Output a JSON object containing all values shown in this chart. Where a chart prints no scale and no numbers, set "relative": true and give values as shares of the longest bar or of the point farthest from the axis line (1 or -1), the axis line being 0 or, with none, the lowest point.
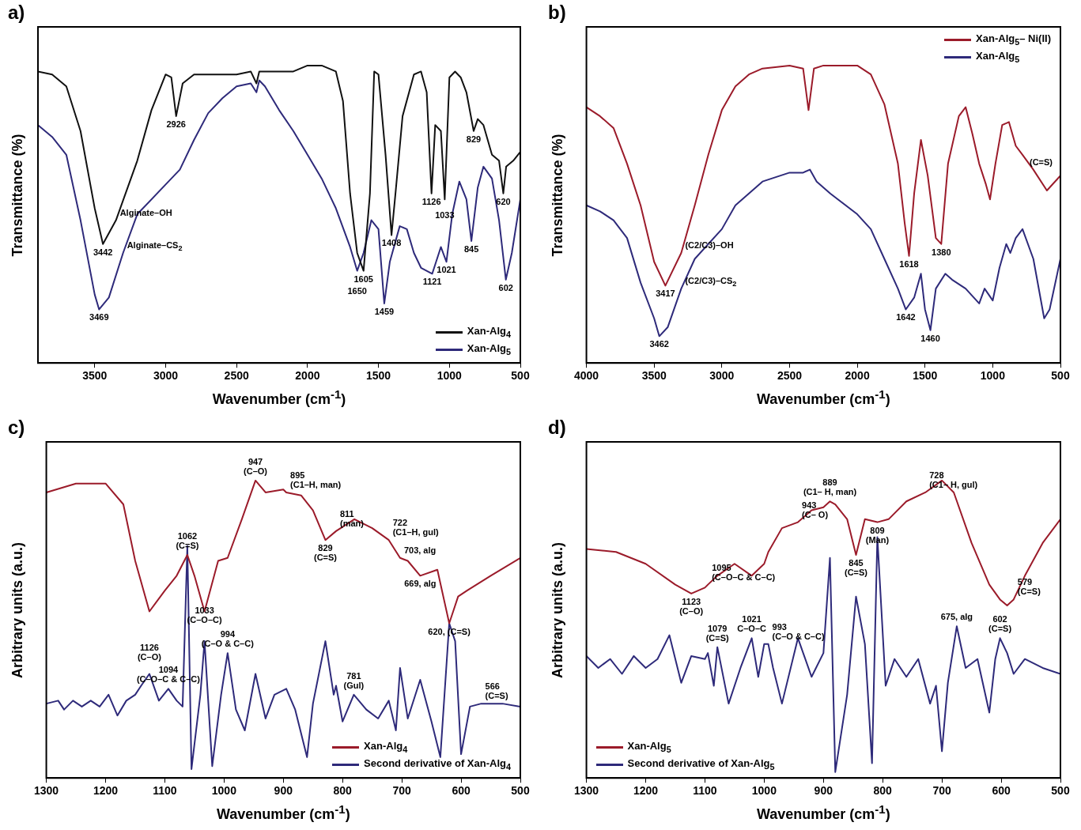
{
  "chart_data": [
    {
      "type": "line",
      "title": "a)",
      "xlabel": "Wavenumber (cm$^{-1}$)",
      "ylabel": "Transmittance (%)",
      "relative": true,
      "xlim": [
        3900,
        500
      ],
      "xticks": [
        3500,
        3000,
        2500,
        2000,
        1500,
        1000,
        500
      ],
      "legend": "bottom right",
      "series": [
        {
          "name": "Xan-Alg$_{4}$",
          "color": "#111111",
          "x": [
            3900,
            3800,
            3700,
            3600,
            3500,
            3442,
            3350,
            3200,
            3100,
            3000,
            2960,
            2926,
            2880,
            2800,
            2700,
            2500,
            2400,
            2360,
            2340,
            2300,
            2100,
            2000,
            1900,
            1800,
            1750,
            1700,
            1650,
            1605,
            1560,
            1530,
            1500,
            1450,
            1408,
            1380,
            1330,
            1250,
            1200,
            1160,
            1126,
            1100,
            1060,
            1033,
            1000,
            960,
            920,
            880,
            829,
            800,
            760,
            700,
            650,
            620,
            600,
            550,
            500
          ],
          "values": [
            0.98,
            0.97,
            0.93,
            0.78,
            0.52,
            0.4,
            0.48,
            0.68,
            0.85,
            0.97,
            0.96,
            0.83,
            0.94,
            0.97,
            0.97,
            0.97,
            0.98,
            0.94,
            0.98,
            0.98,
            0.98,
            1.0,
            1.0,
            0.98,
            0.88,
            0.57,
            0.37,
            0.31,
            0.57,
            0.98,
            0.97,
            0.7,
            0.43,
            0.57,
            0.83,
            0.97,
            0.98,
            0.91,
            0.57,
            0.8,
            0.78,
            0.55,
            0.96,
            0.98,
            0.96,
            0.91,
            0.78,
            0.82,
            0.8,
            0.7,
            0.68,
            0.57,
            0.66,
            0.68,
            0.71
          ]
        },
        {
          "name": "Xan-Alg$_{5}$",
          "color": "#2e2a7a",
          "x": [
            3900,
            3800,
            3700,
            3600,
            3500,
            3469,
            3400,
            3300,
            3200,
            3000,
            2900,
            2800,
            2700,
            2600,
            2500,
            2400,
            2360,
            2340,
            2300,
            2200,
            2100,
            2000,
            1900,
            1800,
            1700,
            1650,
            1605,
            1550,
            1500,
            1459,
            1420,
            1350,
            1300,
            1250,
            1200,
            1121,
            1060,
            1021,
            980,
            930,
            880,
            845,
            800,
            760,
            700,
            650,
            602,
            560,
            500
          ],
          "values": [
            0.8,
            0.76,
            0.7,
            0.48,
            0.23,
            0.18,
            0.22,
            0.37,
            0.5,
            0.6,
            0.65,
            0.75,
            0.84,
            0.89,
            0.93,
            0.94,
            0.91,
            0.95,
            0.93,
            0.85,
            0.78,
            0.7,
            0.62,
            0.52,
            0.39,
            0.31,
            0.37,
            0.48,
            0.45,
            0.2,
            0.34,
            0.46,
            0.45,
            0.37,
            0.32,
            0.3,
            0.39,
            0.34,
            0.5,
            0.61,
            0.55,
            0.41,
            0.59,
            0.66,
            0.62,
            0.48,
            0.28,
            0.37,
            0.55
          ]
        }
      ],
      "annotations": [
        {
          "text": "2926",
          "x": 2926,
          "y": 0.83
        },
        {
          "text": "Alginate–OH",
          "x": 3350,
          "y": 0.48
        },
        {
          "text": "3442",
          "x": 3442,
          "y": 0.4
        },
        {
          "text": "Alginate–CS$_{2}$",
          "x": 3300,
          "y": 0.37
        },
        {
          "text": "3469",
          "x": 3469,
          "y": 0.18
        },
        {
          "text": "1605",
          "x": 1605,
          "y": 0.31
        },
        {
          "text": "1650",
          "x": 1650,
          "y": 0.31
        },
        {
          "text": "1459",
          "x": 1459,
          "y": 0.2
        },
        {
          "text": "1408",
          "x": 1408,
          "y": 0.43
        },
        {
          "text": "1126",
          "x": 1126,
          "y": 0.57
        },
        {
          "text": "1033",
          "x": 1033,
          "y": 0.55
        },
        {
          "text": "1121",
          "x": 1121,
          "y": 0.3
        },
        {
          "text": "1021",
          "x": 1021,
          "y": 0.34
        },
        {
          "text": "845",
          "x": 845,
          "y": 0.41
        },
        {
          "text": "829",
          "x": 829,
          "y": 0.78
        },
        {
          "text": "620",
          "x": 620,
          "y": 0.57
        },
        {
          "text": "602",
          "x": 602,
          "y": 0.28
        }
      ]
    },
    {
      "type": "line",
      "title": "b)",
      "xlabel": "Wavenumber (cm$^{-1}$)",
      "ylabel": "Transmittance (%)",
      "relative": true,
      "xlim": [
        4000,
        500
      ],
      "xticks": [
        4000,
        3500,
        3000,
        2500,
        2000,
        1500,
        1000,
        500
      ],
      "legend": "top right",
      "series": [
        {
          "name": "Xan-Alg$_{5}$– Ni(II)",
          "color": "#9b1b2a",
          "x": [
            4000,
            3900,
            3800,
            3700,
            3600,
            3500,
            3417,
            3300,
            3200,
            3100,
            3000,
            2900,
            2800,
            2700,
            2500,
            2400,
            2360,
            2320,
            2250,
            2000,
            1900,
            1800,
            1700,
            1650,
            1618,
            1580,
            1530,
            1480,
            1420,
            1380,
            1330,
            1250,
            1200,
            1150,
            1100,
            1050,
            1020,
            980,
            930,
            880,
            830,
            780,
            700,
            600,
            500
          ],
          "values": [
            0.86,
            0.83,
            0.79,
            0.67,
            0.53,
            0.34,
            0.26,
            0.37,
            0.53,
            0.7,
            0.85,
            0.93,
            0.97,
            0.99,
            1.0,
            0.99,
            0.85,
            0.99,
            1.0,
            1.0,
            0.97,
            0.87,
            0.67,
            0.47,
            0.36,
            0.57,
            0.75,
            0.63,
            0.42,
            0.4,
            0.67,
            0.83,
            0.86,
            0.77,
            0.67,
            0.6,
            0.55,
            0.67,
            0.8,
            0.81,
            0.73,
            0.7,
            0.65,
            0.58,
            0.63
          ]
        },
        {
          "name": "Xan-Alg$_{5}$",
          "color": "#2e2a7a",
          "x": [
            4000,
            3900,
            3800,
            3700,
            3600,
            3500,
            3462,
            3400,
            3300,
            3200,
            3000,
            2900,
            2800,
            2700,
            2500,
            2400,
            2350,
            2300,
            2200,
            2000,
            1900,
            1800,
            1700,
            1642,
            1580,
            1530,
            1500,
            1460,
            1420,
            1350,
            1300,
            1200,
            1100,
            1060,
            1000,
            950,
            900,
            870,
            830,
            780,
            700,
            620,
            580,
            500
          ],
          "values": [
            0.53,
            0.51,
            0.48,
            0.42,
            0.27,
            0.15,
            0.09,
            0.12,
            0.25,
            0.35,
            0.45,
            0.53,
            0.57,
            0.61,
            0.64,
            0.64,
            0.65,
            0.61,
            0.57,
            0.5,
            0.45,
            0.35,
            0.25,
            0.18,
            0.22,
            0.3,
            0.18,
            0.11,
            0.25,
            0.3,
            0.28,
            0.25,
            0.2,
            0.25,
            0.21,
            0.32,
            0.4,
            0.37,
            0.42,
            0.45,
            0.35,
            0.15,
            0.18,
            0.35
          ]
        }
      ],
      "annotations": [
        {
          "text": "3417",
          "x": 3417,
          "y": 0.26
        },
        {
          "text": "3462",
          "x": 3462,
          "y": 0.09
        },
        {
          "text": "(C2/C3)–OH",
          "x": 3300,
          "y": 0.37
        },
        {
          "text": "(C2/C3)–CS$_{2}$",
          "x": 3300,
          "y": 0.25
        },
        {
          "text": "1618",
          "x": 1618,
          "y": 0.36
        },
        {
          "text": "1380",
          "x": 1380,
          "y": 0.4
        },
        {
          "text": "1642",
          "x": 1642,
          "y": 0.18
        },
        {
          "text": "1460",
          "x": 1460,
          "y": 0.11
        },
        {
          "text": "(C=S)",
          "x": 700,
          "y": 0.65
        }
      ]
    },
    {
      "type": "line",
      "title": "c)",
      "xlabel": "Wavenumber (cm$^{-1}$)",
      "ylabel": "Arbitrary units (a.u.)",
      "relative": true,
      "xlim": [
        1300,
        500
      ],
      "xticks": [
        1300,
        1200,
        1100,
        1000,
        900,
        800,
        700,
        600,
        500
      ],
      "legend": "bottom right",
      "series": [
        {
          "name": "Xan-Alg$_{4}$",
          "color": "#9b1b2a",
          "x": [
            1300,
            1250,
            1200,
            1170,
            1150,
            1126,
            1100,
            1080,
            1062,
            1050,
            1033,
            1010,
            994,
            970,
            947,
            930,
            900,
            895,
            870,
            850,
            829,
            811,
            780,
            750,
            722,
            703,
            690,
            669,
            640,
            620,
            605,
            590,
            550,
            500
          ],
          "values": [
            0.96,
            0.99,
            0.99,
            0.92,
            0.73,
            0.56,
            0.63,
            0.68,
            0.75,
            0.68,
            0.56,
            0.73,
            0.74,
            0.87,
            1.0,
            0.96,
            0.97,
            0.96,
            0.95,
            0.9,
            0.8,
            0.83,
            0.87,
            0.84,
            0.8,
            0.74,
            0.73,
            0.68,
            0.7,
            0.52,
            0.61,
            0.63,
            0.68,
            0.74
          ]
        },
        {
          "name": "Second derivative of Xan-Alg$_{4}$",
          "color": "#2e2a7a",
          "x": [
            1300,
            1280,
            1270,
            1255,
            1240,
            1225,
            1210,
            1195,
            1180,
            1165,
            1150,
            1140,
            1126,
            1110,
            1094,
            1080,
            1070,
            1062,
            1055,
            1040,
            1033,
            1020,
            1005,
            994,
            980,
            965,
            947,
            930,
            915,
            895,
            880,
            860,
            850,
            829,
            815,
            811,
            800,
            781,
            760,
            740,
            722,
            710,
            703,
            690,
            669,
            650,
            635,
            620,
            610,
            600,
            585,
            566,
            550,
            530,
            500
          ],
          "values": [
            0.25,
            0.26,
            0.23,
            0.26,
            0.24,
            0.26,
            0.24,
            0.28,
            0.21,
            0.26,
            0.28,
            0.31,
            0.35,
            0.26,
            0.3,
            0.26,
            0.24,
            0.78,
            0.03,
            0.28,
            0.46,
            0.04,
            0.28,
            0.42,
            0.23,
            0.16,
            0.35,
            0.2,
            0.28,
            0.3,
            0.23,
            0.07,
            0.25,
            0.46,
            0.28,
            0.31,
            0.19,
            0.28,
            0.23,
            0.2,
            0.26,
            0.16,
            0.37,
            0.2,
            0.33,
            0.19,
            0.07,
            0.52,
            0.46,
            0.08,
            0.24,
            0.25,
            0.25,
            0.25,
            0.24
          ]
        }
      ],
      "annotations": [
        {
          "text": "1062\n(C=S)",
          "x": 1062,
          "y": 0.75
        },
        {
          "text": "1094\n(C–O–C & C–C)",
          "x": 1094,
          "y": 0.3
        },
        {
          "text": "994\n(C–O & C–C)",
          "x": 994,
          "y": 0.42
        },
        {
          "text": "947\n(C–O)",
          "x": 947,
          "y": 1.0
        },
        {
          "text": "895\n(C1–H, man)",
          "x": 895,
          "y": 0.96
        },
        {
          "text": "811\n(man)",
          "x": 811,
          "y": 0.83
        },
        {
          "text": "722\n(C1–H, gul)",
          "x": 722,
          "y": 0.8
        },
        {
          "text": "829\n(C=S)",
          "x": 829,
          "y": 0.8
        },
        {
          "text": "703, alg",
          "x": 703,
          "y": 0.74
        },
        {
          "text": "669, alg",
          "x": 669,
          "y": 0.68
        },
        {
          "text": "620, (C=S)",
          "x": 620,
          "y": 0.52
        },
        {
          "text": "1126\n(C–O)",
          "x": 1126,
          "y": 0.35
        },
        {
          "text": "1033\n(C–O–C)",
          "x": 1033,
          "y": 0.46
        },
        {
          "text": "781\n(Gul)",
          "x": 781,
          "y": 0.28
        },
        {
          "text": "566\n(C=S)",
          "x": 566,
          "y": 0.25
        }
      ]
    },
    {
      "type": "line",
      "title": "d)",
      "xlabel": "Wavenumber (cm$^{-1}$)",
      "ylabel": "Arbitrary units (a.u.)",
      "relative": true,
      "xlim": [
        1300,
        500
      ],
      "xticks": [
        1300,
        1200,
        1100,
        1000,
        900,
        800,
        700,
        600,
        500
      ],
      "legend": "bottom left",
      "series": [
        {
          "name": "Xan-Alg$_{5}$",
          "color": "#9b1b2a",
          "x": [
            1300,
            1250,
            1200,
            1150,
            1123,
            1100,
            1095,
            1079,
            1050,
            1021,
            1000,
            993,
            970,
            943,
            920,
            900,
            889,
            880,
            860,
            845,
            830,
            809,
            790,
            760,
            728,
            700,
            680,
            650,
            620,
            602,
            590,
            579,
            560,
            530,
            500
          ],
          "values": [
            0.77,
            0.76,
            0.72,
            0.65,
            0.62,
            0.64,
            0.65,
            0.68,
            0.72,
            0.68,
            0.72,
            0.76,
            0.84,
            0.86,
            0.9,
            0.91,
            0.93,
            0.92,
            0.87,
            0.75,
            0.87,
            0.86,
            0.87,
            0.93,
            0.96,
            1.0,
            0.96,
            0.79,
            0.65,
            0.6,
            0.58,
            0.6,
            0.68,
            0.79,
            0.87
          ]
        },
        {
          "name": "Second derivative of Xan-Alg$_{5}$",
          "color": "#2e2a7a",
          "x": [
            1300,
            1280,
            1260,
            1240,
            1220,
            1200,
            1180,
            1160,
            1140,
            1123,
            1100,
            1095,
            1085,
            1079,
            1060,
            1040,
            1021,
            1010,
            1000,
            993,
            985,
            970,
            943,
            920,
            900,
            889,
            880,
            860,
            845,
            830,
            818,
            809,
            795,
            780,
            760,
            740,
            720,
            710,
            700,
            690,
            675,
            660,
            640,
            620,
            610,
            602,
            590,
            579,
            560,
            530,
            500
          ],
          "values": [
            0.41,
            0.37,
            0.4,
            0.35,
            0.41,
            0.37,
            0.4,
            0.48,
            0.32,
            0.41,
            0.4,
            0.42,
            0.31,
            0.44,
            0.25,
            0.37,
            0.47,
            0.34,
            0.45,
            0.45,
            0.37,
            0.25,
            0.47,
            0.34,
            0.42,
            0.74,
            0.02,
            0.28,
            0.61,
            0.45,
            0.05,
            0.81,
            0.31,
            0.4,
            0.34,
            0.4,
            0.25,
            0.31,
            0.09,
            0.32,
            0.51,
            0.37,
            0.4,
            0.22,
            0.4,
            0.47,
            0.42,
            0.35,
            0.4,
            0.37,
            0.35
          ]
        }
      ],
      "annotations": [
        {
          "text": "889\n(C1– H, man)",
          "x": 889,
          "y": 0.93
        },
        {
          "text": "943\n(C– O)",
          "x": 943,
          "y": 0.86
        },
        {
          "text": "1095\n(C–O–C & C–C)",
          "x": 1095,
          "y": 0.65
        },
        {
          "text": "1123\n(C–O)",
          "x": 1123,
          "y": 0.62
        },
        {
          "text": "845\n(C=S)",
          "x": 845,
          "y": 0.75
        },
        {
          "text": "809\n(Man)",
          "x": 809,
          "y": 0.86
        },
        {
          "text": "728\n(C1– H, gul)",
          "x": 728,
          "y": 0.96
        },
        {
          "text": "579\n(C=S)",
          "x": 579,
          "y": 0.6
        },
        {
          "text": "602\n(C=S)",
          "x": 602,
          "y": 0.47
        },
        {
          "text": "1079\n(C=S)",
          "x": 1079,
          "y": 0.44
        },
        {
          "text": "1021\nC–O–C",
          "x": 1021,
          "y": 0.47
        },
        {
          "text": "993\n(C–O & C–C)",
          "x": 993,
          "y": 0.45
        },
        {
          "text": "675, alg",
          "x": 675,
          "y": 0.51
        }
      ]
    }
  ]
}
